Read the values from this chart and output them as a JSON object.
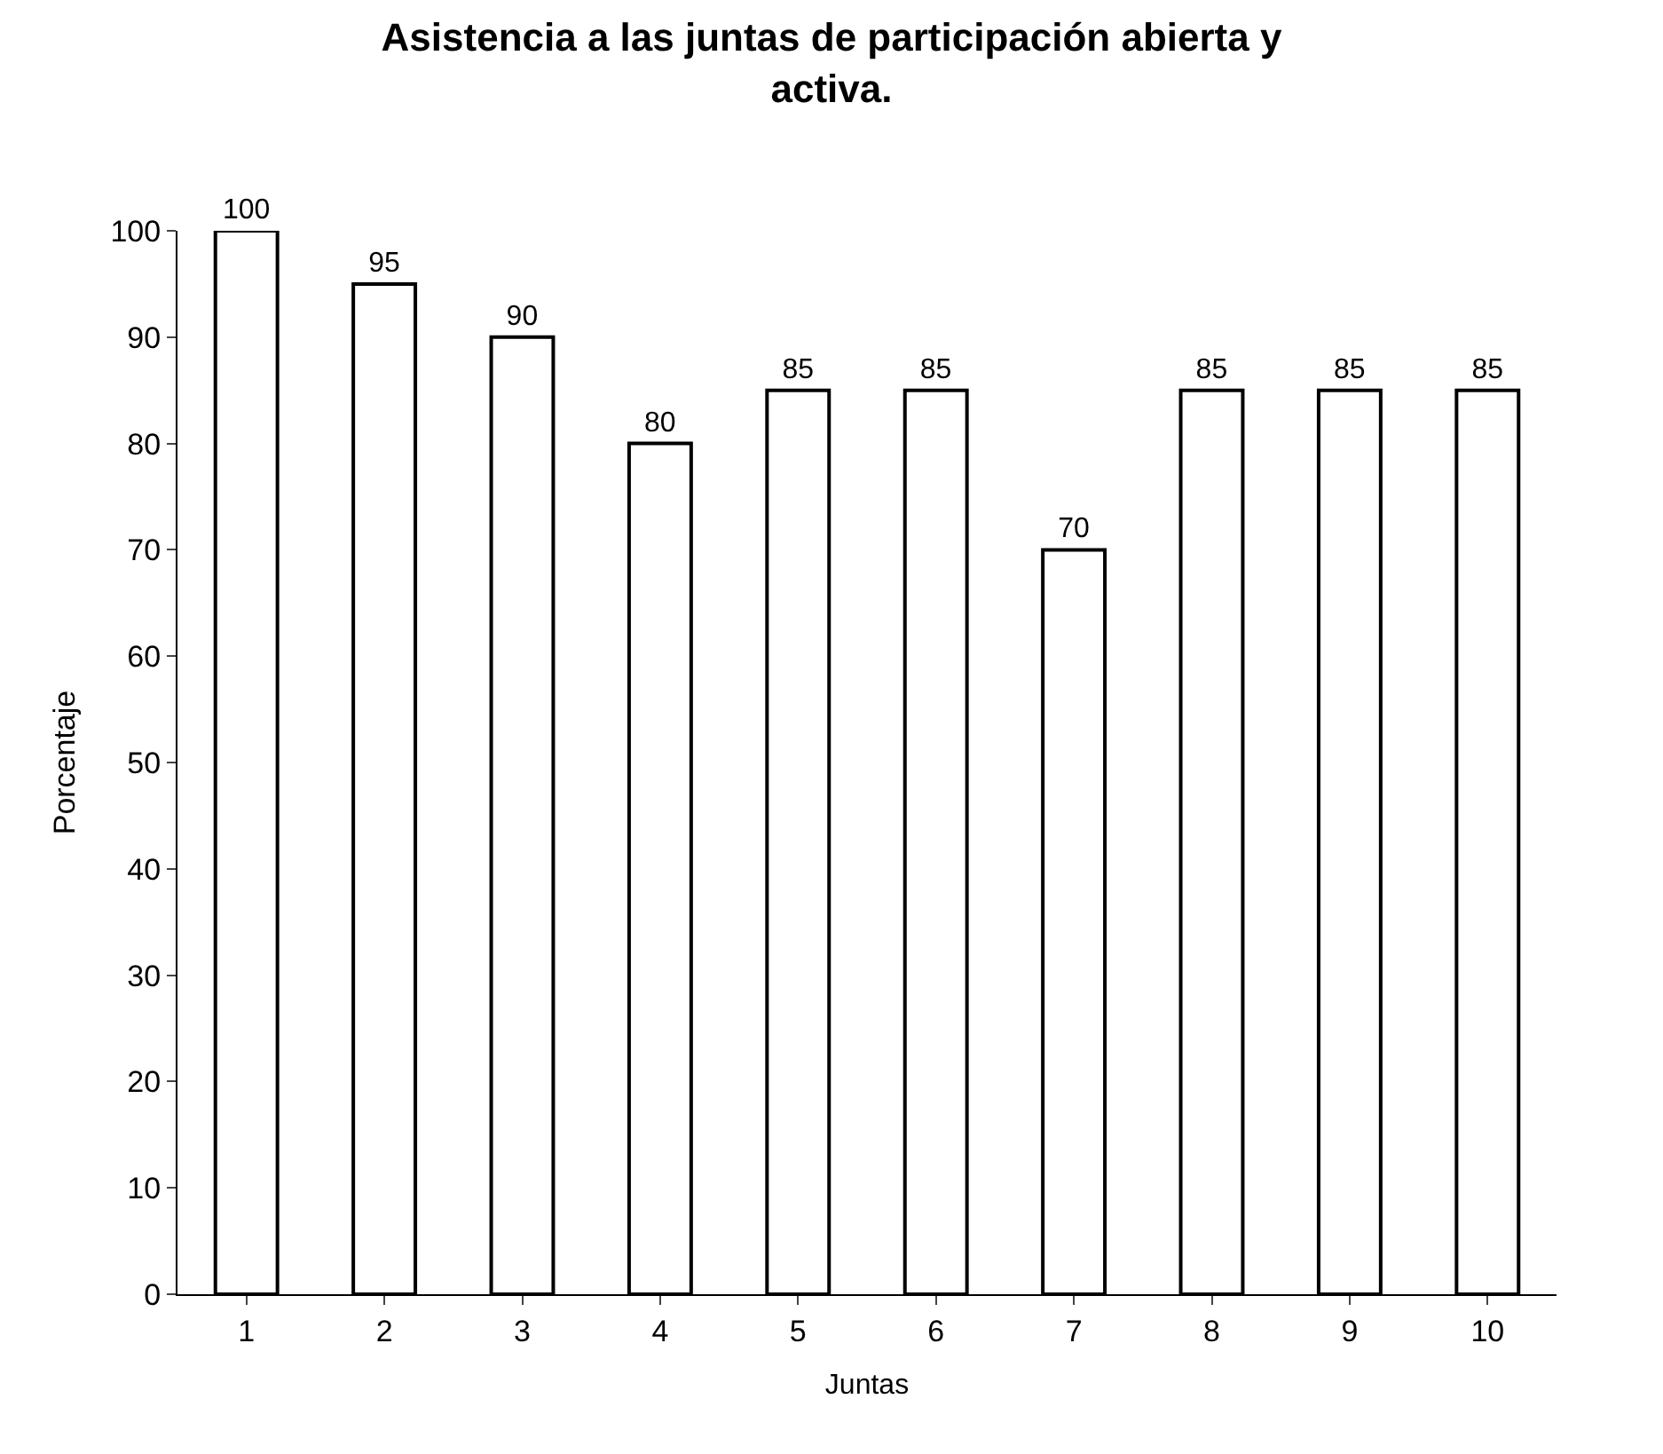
{
  "chart_data": {
    "type": "bar",
    "title": "Asistencia a las juntas de participación abierta y activa.",
    "xlabel": "Juntas",
    "ylabel": "Porcentaje",
    "categories": [
      "1",
      "2",
      "3",
      "4",
      "5",
      "6",
      "7",
      "8",
      "9",
      "10"
    ],
    "values": [
      100,
      95,
      90,
      80,
      85,
      85,
      70,
      85,
      85,
      85
    ],
    "color": "#ffffff",
    "data_labels": true,
    "ylim": [
      0,
      100
    ],
    "yticks": [
      0,
      10,
      20,
      30,
      40,
      50,
      60,
      70,
      80,
      90,
      100
    ],
    "grid": false,
    "legend": false
  }
}
